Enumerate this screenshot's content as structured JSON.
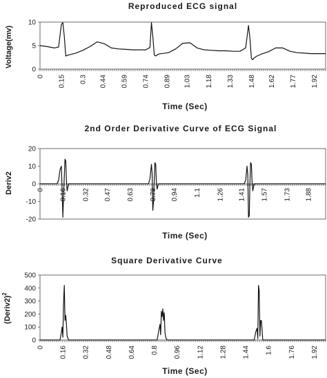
{
  "chart_data": [
    {
      "type": "line",
      "title": "Reproduced ECG signal",
      "xlabel": "Time (Sec)",
      "ylabel": "Voltage(mv)",
      "ylim": [
        0,
        10
      ],
      "xlim": [
        0,
        2.0
      ],
      "yticks": [
        "0",
        "5",
        "10"
      ],
      "xticks": [
        "0",
        "0.15",
        "0.3",
        "0.44",
        "0.59",
        "0.74",
        "0.89",
        "1.03",
        "1.18",
        "1.33",
        "1.48",
        "1.62",
        "1.77",
        "1.92"
      ],
      "grid": false,
      "series": [
        {
          "x": [
            0,
            0.05,
            0.1,
            0.13,
            0.15,
            0.16,
            0.17,
            0.18,
            0.2,
            0.25,
            0.3,
            0.35,
            0.4,
            0.45,
            0.5,
            0.55,
            0.6,
            0.65,
            0.7,
            0.74,
            0.77,
            0.78,
            0.79,
            0.8,
            0.81,
            0.83,
            0.9,
            0.95,
            1.0,
            1.05,
            1.1,
            1.15,
            1.2,
            1.25,
            1.3,
            1.35,
            1.4,
            1.44,
            1.46,
            1.47,
            1.48,
            1.49,
            1.5,
            1.52,
            1.56,
            1.6,
            1.65,
            1.7,
            1.75,
            1.8,
            1.85,
            1.9,
            1.95,
            2.0
          ],
          "y": [
            5.0,
            4.8,
            4.5,
            4.7,
            9.5,
            9.9,
            7.0,
            2.8,
            3.0,
            3.4,
            4.0,
            4.8,
            5.8,
            5.4,
            4.5,
            4.3,
            4.2,
            4.1,
            4.1,
            4.1,
            4.6,
            9.9,
            7.0,
            3.0,
            2.8,
            3.2,
            3.5,
            4.3,
            5.5,
            5.6,
            4.5,
            4.1,
            4.0,
            3.9,
            3.9,
            3.8,
            3.8,
            4.5,
            9.3,
            6.5,
            2.3,
            2.0,
            2.4,
            2.8,
            3.3,
            3.7,
            4.5,
            4.5,
            3.8,
            3.5,
            3.4,
            3.3,
            3.3,
            3.3
          ]
        }
      ]
    },
    {
      "type": "line",
      "title": "2nd Order Derivative Curve of ECG Signal",
      "xlabel": "Time (Sec)",
      "ylabel": "Deriv2",
      "ylim": [
        -20,
        20
      ],
      "xlim": [
        0,
        2.0
      ],
      "yticks": [
        "20",
        "10",
        "0",
        "-10",
        "-20"
      ],
      "xticks": [
        "0",
        "0.16",
        "0.32",
        "0.47",
        "0.63",
        "0.79",
        "0.94",
        "1.1",
        "1.26",
        "1.41",
        "1.57",
        "1.73",
        "1.88"
      ],
      "grid": false,
      "series": [
        {
          "x": [
            0,
            0.12,
            0.13,
            0.14,
            0.15,
            0.155,
            0.16,
            0.165,
            0.17,
            0.175,
            0.18,
            0.185,
            0.19,
            0.195,
            0.2,
            0.21,
            0.76,
            0.77,
            0.78,
            0.785,
            0.79,
            0.795,
            0.8,
            0.805,
            0.81,
            0.815,
            0.82,
            0.83,
            1.43,
            1.44,
            1.45,
            1.455,
            1.46,
            1.465,
            1.47,
            1.475,
            1.48,
            1.485,
            1.49,
            1.5,
            2.0
          ],
          "y": [
            0,
            0,
            2,
            8,
            10,
            -4,
            -19,
            -6,
            4,
            14,
            13,
            2,
            -4,
            -2,
            0,
            0,
            0,
            3,
            11,
            6,
            -15,
            -10,
            2,
            12,
            11,
            1,
            -3,
            0,
            0,
            2,
            10,
            5,
            -19,
            -18,
            1,
            12,
            11,
            1,
            -4,
            0,
            0
          ]
        }
      ]
    },
    {
      "type": "line",
      "title": "Square Derivative Curve",
      "xlabel": "Time (Sec)",
      "ylabel": "(Deriv2)",
      "ylabel_sup": "2",
      "ylim": [
        0,
        500
      ],
      "xlim": [
        0,
        2.0
      ],
      "yticks": [
        "500",
        "400",
        "300",
        "200",
        "100",
        "0"
      ],
      "xticks": [
        "0",
        "0.16",
        "0.32",
        "0.48",
        "0.64",
        "0.8",
        "0.96",
        "1.12",
        "1.28",
        "1.44",
        "1.6",
        "1.76",
        "1.92"
      ],
      "grid": false,
      "series": [
        {
          "x": [
            0,
            0.14,
            0.15,
            0.155,
            0.16,
            0.165,
            0.17,
            0.175,
            0.18,
            0.185,
            0.19,
            0.2,
            0.82,
            0.83,
            0.84,
            0.845,
            0.85,
            0.855,
            0.86,
            0.865,
            0.87,
            0.875,
            0.88,
            0.89,
            1.5,
            1.51,
            1.52,
            1.525,
            1.53,
            1.535,
            1.54,
            1.545,
            1.55,
            1.56,
            2.0
          ],
          "y": [
            0,
            0,
            60,
            100,
            20,
            300,
            420,
            150,
            190,
            120,
            30,
            0,
            0,
            60,
            120,
            40,
            220,
            180,
            240,
            150,
            210,
            60,
            20,
            0,
            0,
            60,
            90,
            10,
            420,
            380,
            30,
            150,
            150,
            0,
            0
          ]
        }
      ]
    }
  ]
}
